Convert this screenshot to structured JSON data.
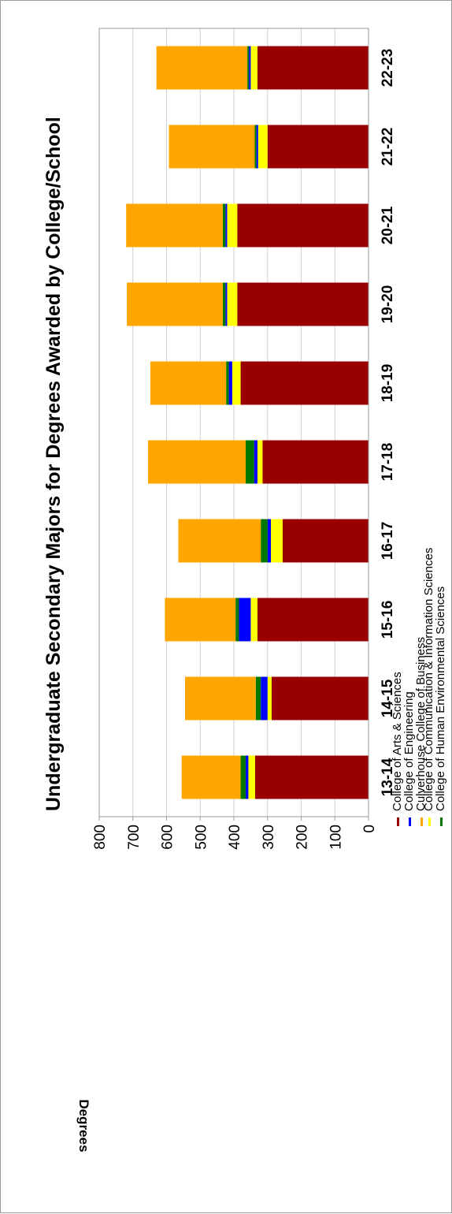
{
  "chart_data": {
    "type": "bar",
    "stacked": true,
    "orientation": "vertical",
    "title": "Undergraduate Secondary Majors for Degrees Awarded by College/School",
    "xlabel": "",
    "ylabel": "Degrees",
    "ylim": [
      0,
      800
    ],
    "yticks": [
      0,
      100,
      200,
      300,
      400,
      500,
      600,
      700,
      800
    ],
    "grid": true,
    "legend_position": "bottom",
    "categories": [
      "13-14",
      "14-15",
      "15-16",
      "16-17",
      "17-18",
      "18-19",
      "19-20",
      "20-21",
      "21-22",
      "22-23"
    ],
    "series": [
      {
        "name": "College of Arts & Sciences",
        "color": "#990000",
        "values": [
          337,
          288,
          330,
          255,
          315,
          380,
          390,
          390,
          300,
          330
        ]
      },
      {
        "name": "College of Communication & Information Sciences",
        "color": "#ffff00",
        "values": [
          20,
          12,
          20,
          35,
          15,
          25,
          30,
          30,
          28,
          20
        ]
      },
      {
        "name": "College of Engineering",
        "color": "#0000ff",
        "values": [
          8,
          20,
          35,
          10,
          10,
          10,
          5,
          5,
          5,
          5
        ]
      },
      {
        "name": "College of Human Environmental Sciences",
        "color": "#007700",
        "values": [
          15,
          15,
          10,
          20,
          25,
          8,
          8,
          8,
          5,
          5
        ]
      },
      {
        "name": "Culverhouse College of Business",
        "color": "#ffa500",
        "values": [
          175,
          210,
          210,
          245,
          290,
          225,
          285,
          287,
          255,
          270
        ]
      }
    ]
  }
}
